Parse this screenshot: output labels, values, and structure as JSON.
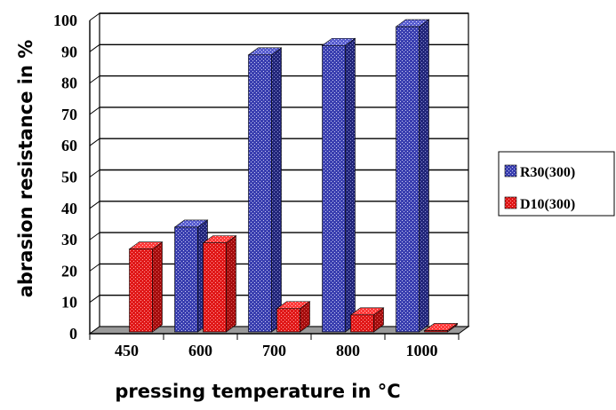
{
  "chart_data": {
    "type": "bar",
    "categories": [
      "450",
      "600",
      "700",
      "800",
      "1000"
    ],
    "series": [
      {
        "name": "R30(300)",
        "values": [
          0,
          34,
          89,
          92,
          98
        ],
        "color": "#3a3fb0"
      },
      {
        "name": "D10(300)",
        "values": [
          27,
          29,
          8,
          6,
          1
        ],
        "color": "#e01818"
      }
    ],
    "xlabel": "pressing temperature in °C",
    "ylabel": "abrasion resistance in %",
    "ylim": [
      0,
      100
    ],
    "yticks": [
      0,
      10,
      20,
      30,
      40,
      50,
      60,
      70,
      80,
      90,
      100
    ],
    "grid": true,
    "legend_position": "right",
    "style": "3d"
  }
}
